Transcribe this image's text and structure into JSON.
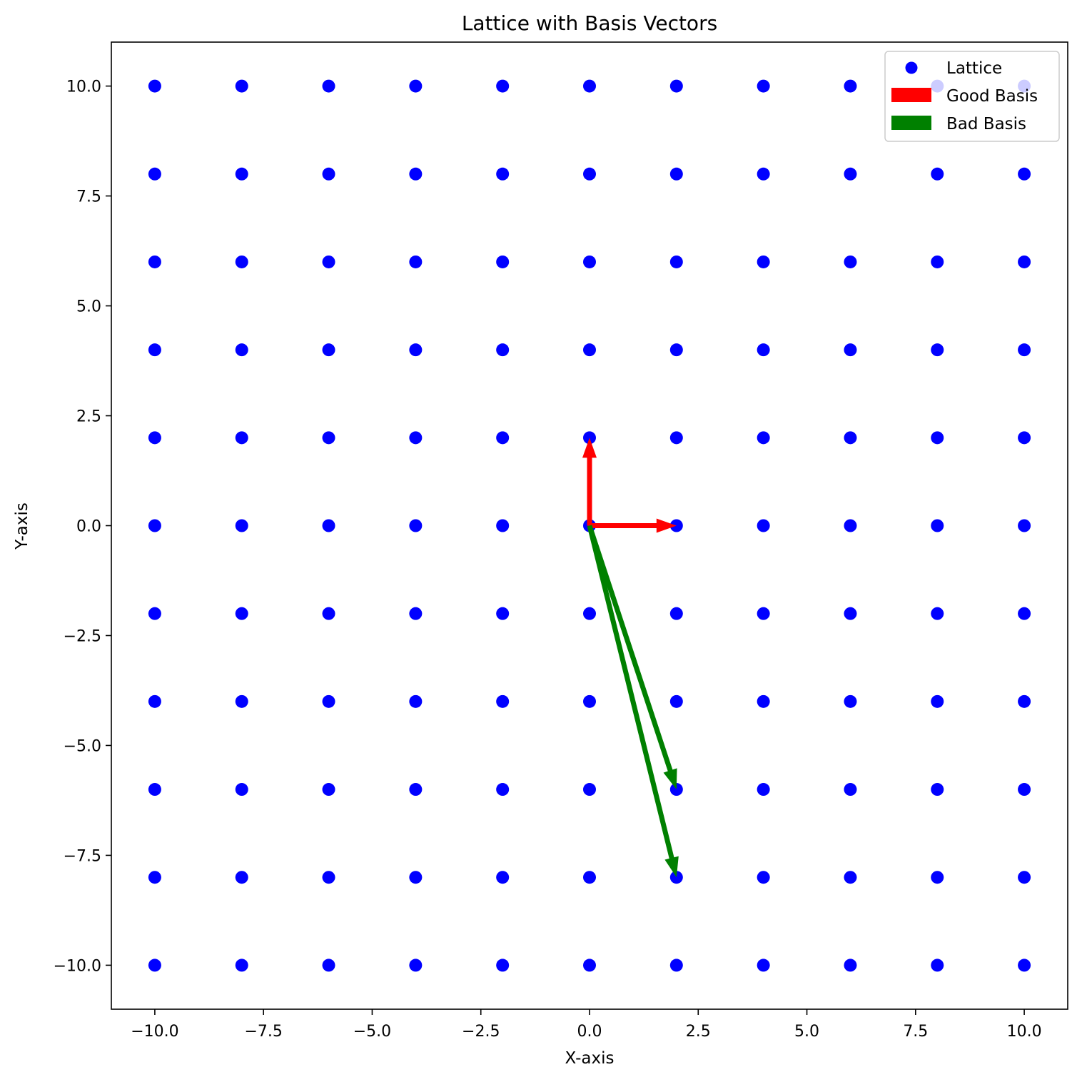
{
  "chart_data": {
    "type": "scatter",
    "title": "Lattice with Basis Vectors",
    "xlabel": "X-axis",
    "ylabel": "Y-axis",
    "xlim": [
      -11,
      11
    ],
    "ylim": [
      -11,
      11
    ],
    "xticks": [
      -10,
      -7.5,
      -5,
      -2.5,
      0,
      2.5,
      5,
      7.5,
      10
    ],
    "yticks": [
      -10,
      -7.5,
      -5,
      -2.5,
      0,
      2.5,
      5,
      7.5,
      10
    ],
    "xtick_labels": [
      "−10.0",
      "−7.5",
      "−5.0",
      "−2.5",
      "0.0",
      "2.5",
      "5.0",
      "7.5",
      "10.0"
    ],
    "ytick_labels": [
      "−10.0",
      "−7.5",
      "−5.0",
      "−2.5",
      "0.0",
      "2.5",
      "5.0",
      "7.5",
      "10.0"
    ],
    "grid": false,
    "legend_position": "top-right",
    "series": [
      {
        "name": "Lattice",
        "kind": "points",
        "color": "#0000ff",
        "x_values": [
          -10,
          -8,
          -6,
          -4,
          -2,
          0,
          2,
          4,
          6,
          8,
          10
        ],
        "y_values": [
          -10,
          -8,
          -6,
          -4,
          -2,
          0,
          2,
          4,
          6,
          8,
          10
        ]
      },
      {
        "name": "Good Basis",
        "kind": "vectors",
        "color": "#ff0000",
        "vectors": [
          {
            "x0": 0,
            "y0": 0,
            "x1": 2,
            "y1": 0
          },
          {
            "x0": 0,
            "y0": 0,
            "x1": 0,
            "y1": 2
          }
        ]
      },
      {
        "name": "Bad Basis",
        "kind": "vectors",
        "color": "#008000",
        "vectors": [
          {
            "x0": 0,
            "y0": 0,
            "x1": 2,
            "y1": -6
          },
          {
            "x0": 0,
            "y0": 0,
            "x1": 2,
            "y1": -8
          }
        ]
      }
    ]
  }
}
